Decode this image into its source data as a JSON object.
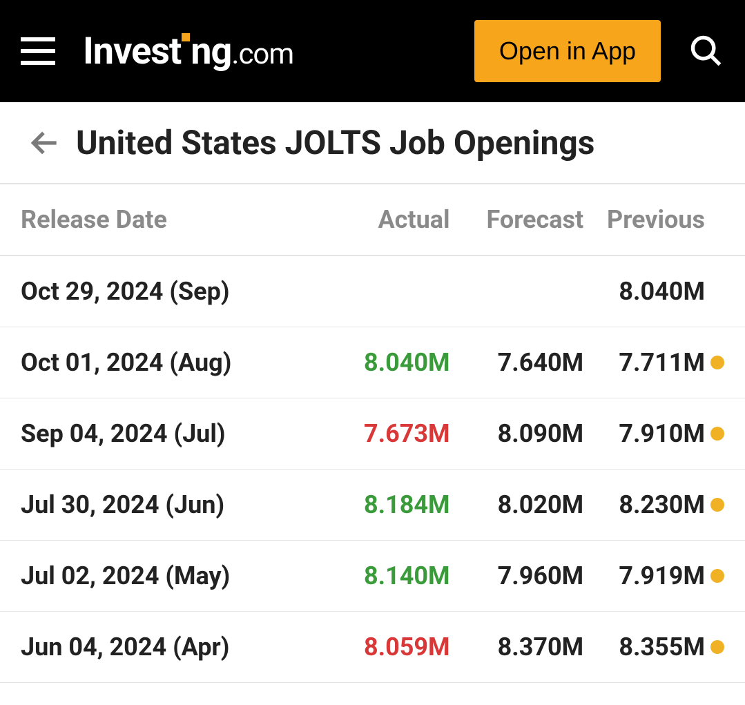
{
  "header": {
    "logo_main": "Invest",
    "logo_main2": "ng",
    "logo_suffix": ".com",
    "open_app_label": "Open in App"
  },
  "page": {
    "title": "United States JOLTS Job Openings"
  },
  "table": {
    "columns": {
      "release_date": "Release Date",
      "actual": "Actual",
      "forecast": "Forecast",
      "previous": "Previous"
    },
    "rows": [
      {
        "date": "Oct 29, 2024 (Sep)",
        "actual": "",
        "actual_color": "none",
        "forecast": "",
        "previous": "8.040M",
        "has_dot": false
      },
      {
        "date": "Oct 01, 2024 (Aug)",
        "actual": "8.040M",
        "actual_color": "green",
        "forecast": "7.640M",
        "previous": "7.711M",
        "has_dot": true
      },
      {
        "date": "Sep 04, 2024 (Jul)",
        "actual": "7.673M",
        "actual_color": "red",
        "forecast": "8.090M",
        "previous": "7.910M",
        "has_dot": true
      },
      {
        "date": "Jul 30, 2024 (Jun)",
        "actual": "8.184M",
        "actual_color": "green",
        "forecast": "8.020M",
        "previous": "8.230M",
        "has_dot": true
      },
      {
        "date": "Jul 02, 2024 (May)",
        "actual": "8.140M",
        "actual_color": "green",
        "forecast": "7.960M",
        "previous": "7.919M",
        "has_dot": true
      },
      {
        "date": "Jun 04, 2024 (Apr)",
        "actual": "8.059M",
        "actual_color": "red",
        "forecast": "8.370M",
        "previous": "8.355M",
        "has_dot": true
      }
    ]
  },
  "colors": {
    "header_bg": "#000000",
    "accent_orange": "#f7a61c",
    "text_gray": "#8a8a8a",
    "text_dark": "#222222",
    "actual_green": "#3a9b3a",
    "actual_red": "#d93838",
    "dot_orange": "#f0b224",
    "divider": "#e5e5e5"
  }
}
